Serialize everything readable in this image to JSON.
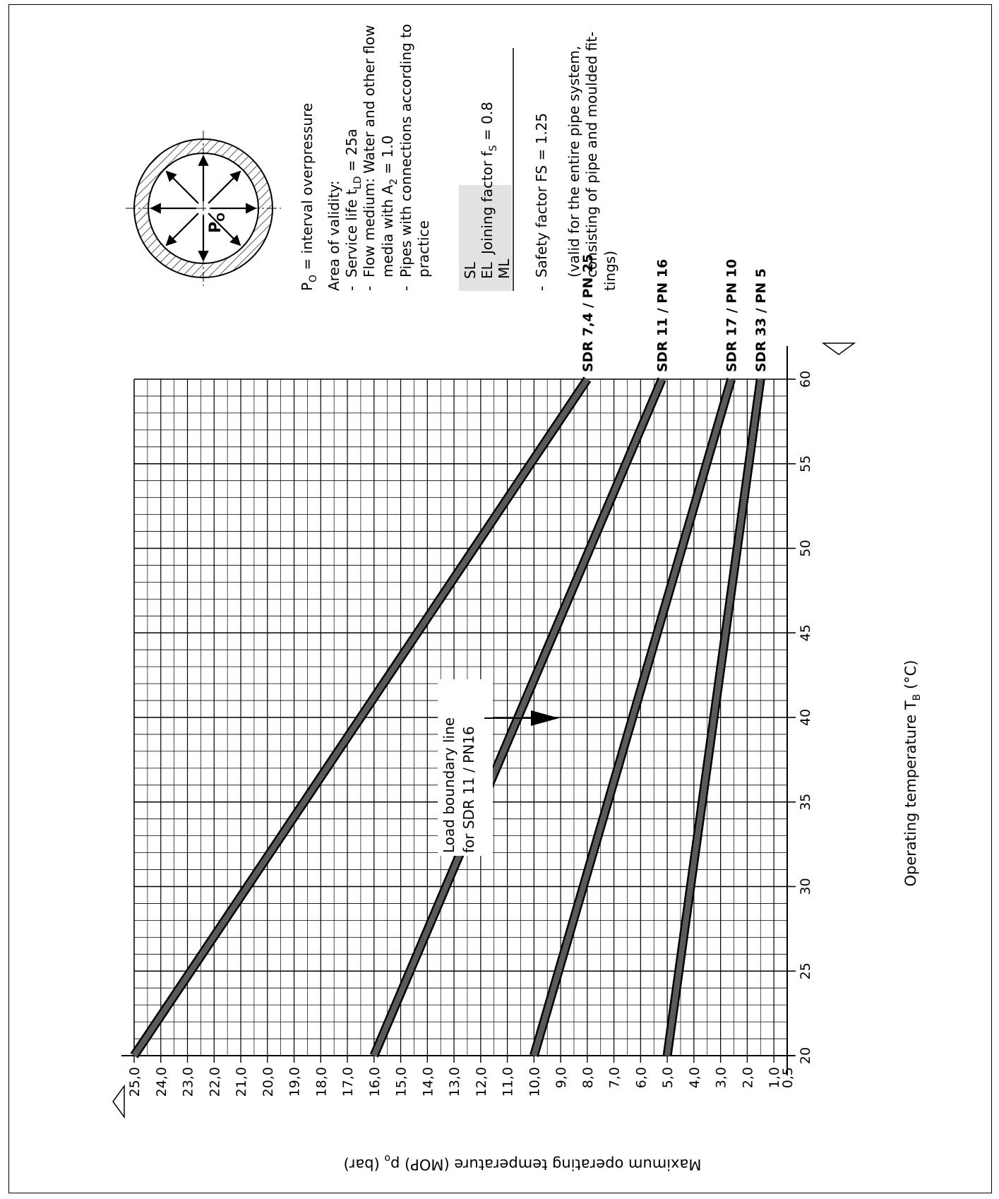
{
  "chart_data": {
    "type": "line",
    "xlabel": "Operating temperature T",
    "xlabel_sub": "B",
    "xlabel_unit": " (°C)",
    "ylabel": "Maximum operating temperature (MOP) p",
    "ylabel_sub": "o",
    "ylabel_unit": " (bar)",
    "xlim": [
      20,
      60
    ],
    "ylim": [
      0.5,
      25
    ],
    "x_ticks": [
      "20",
      "25",
      "30",
      "35",
      "40",
      "45",
      "50",
      "55",
      "60"
    ],
    "y_ticks": [
      "0,5",
      "1,0",
      "2,0",
      "3,0",
      "4,0",
      "5,0",
      "6,0",
      "7,0",
      "8,0",
      "9,0",
      "10,0",
      "11,0",
      "12,0",
      "13,0",
      "14,0",
      "15,0",
      "16,0",
      "17,0",
      "18,0",
      "19,0",
      "20,0",
      "21,0",
      "22,0",
      "23,0",
      "24,0",
      "25,0"
    ],
    "grid": true,
    "series": [
      {
        "name": "SDR 7,4 / PN 25",
        "x": [
          20,
          60
        ],
        "y": [
          25.0,
          8.0
        ]
      },
      {
        "name": "SDR 11   / PN 16",
        "x": [
          20,
          60
        ],
        "y": [
          16.0,
          5.2
        ]
      },
      {
        "name": "SDR 17 / PN 10",
        "x": [
          20,
          60
        ],
        "y": [
          10.0,
          2.6
        ]
      },
      {
        "name": "SDR 33 / PN 5",
        "x": [
          20,
          60
        ],
        "y": [
          5.0,
          1.5
        ]
      }
    ],
    "annotation": {
      "line1": "Load boundary line",
      "line2": "for SDR 11 / PN16",
      "points_to": {
        "x": 43,
        "y": 10.5
      }
    }
  },
  "notes": {
    "po_symbol": "P",
    "po_sub": "O",
    "po_def": " = interval overpressure",
    "diagram_label": "P",
    "diagram_label_sub": "O",
    "area_title": "Area of validity:",
    "service_life_a": "Service life t",
    "service_life_sub": "LD",
    "service_life_b": " = 25a",
    "flow_medium": "Flow medium: Water and other flow",
    "media_a": "media with  A",
    "media_sub": "2",
    "media_b": " = 1.0",
    "pipes_1": "Pipes with connections according to",
    "pipes_2": "practice",
    "sl": "SL",
    "el": "EL",
    "ml": "ML",
    "joining_a": "Joining factor f",
    "joining_sub": "S",
    "joining_b": " = 0.8",
    "safety": "Safety factor FS = 1.25",
    "valid_1": "(valid for the entire pipe system,",
    "valid_2": "consisting  of  pipe  and  moulded  fit-",
    "valid_3": "tings)",
    "dash": "-"
  }
}
